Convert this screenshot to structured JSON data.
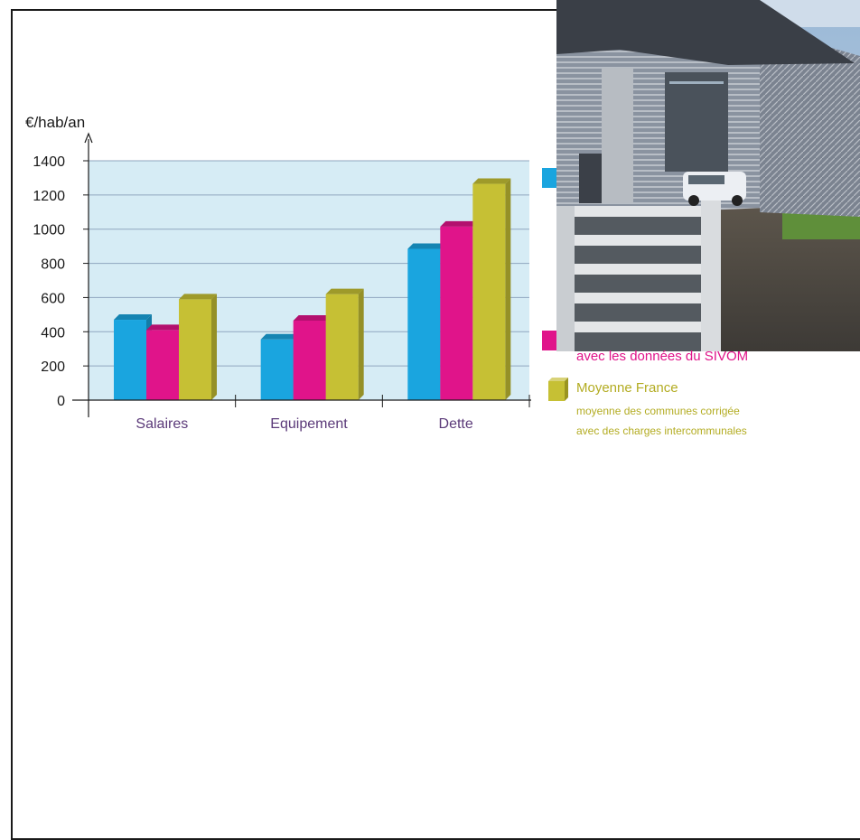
{
  "chart_data": {
    "type": "bar",
    "ylabel": "€/hab/an",
    "ylim": [
      0,
      1400
    ],
    "yticks": [
      0,
      200,
      400,
      600,
      800,
      1000,
      1200,
      1400
    ],
    "categories": [
      "Salaires",
      "Equipement",
      "Dette"
    ],
    "grid": true,
    "legend_placement": "right",
    "series": [
      {
        "values": [
          470,
          355,
          885
        ],
        "color": "#1aa5df"
      },
      {
        "values": [
          410,
          465,
          1015
        ],
        "color": "#e0148a"
      },
      {
        "name": "Moyenne France",
        "values": [
          590,
          620,
          1265
        ],
        "color": "#c6c034"
      }
    ]
  },
  "legend": {
    "pink_partial_line": "avec les données du SIVOM",
    "olive_title": "Moyenne France",
    "olive_sub1": "moyenne des communes corrigée",
    "olive_sub2": "avec des charges intercommunales"
  },
  "colors": {
    "plot_bg": "#d6ecf5",
    "category_text": "#5b3a79",
    "pink_text": "#e0148a",
    "olive_text": "#b3ac22"
  }
}
